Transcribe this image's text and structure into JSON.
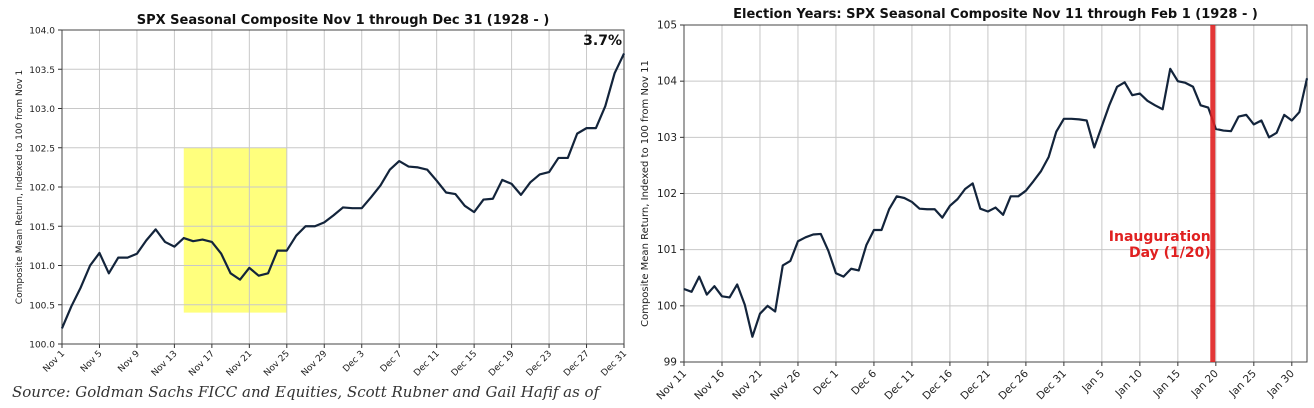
{
  "chart_data": [
    {
      "type": "line",
      "title": "SPX Seasonal Composite Nov 1 through Dec 31 (1928 - )",
      "xlabel": "",
      "ylabel": "Composite Mean Return, Indexed to 100 from Nov 1",
      "ylim": [
        100.0,
        104.0
      ],
      "yticks": [
        "100.0",
        "100.5",
        "101.0",
        "101.5",
        "102.0",
        "102.5",
        "103.0",
        "103.5",
        "104.0"
      ],
      "xtick_labels": [
        "Nov 1",
        "Nov 5",
        "Nov 9",
        "Nov 13",
        "Nov 17",
        "Nov 21",
        "Nov 25",
        "Nov 29",
        "Dec 3",
        "Dec 7",
        "Dec 11",
        "Dec 15",
        "Dec 19",
        "Dec 23",
        "Dec 27",
        "Dec 31"
      ],
      "x_days_range": [
        0,
        60
      ],
      "grid": true,
      "annotation": "3.7%",
      "highlight": {
        "x_days": [
          13,
          24
        ],
        "y": [
          100.4,
          102.5
        ],
        "color": "#ffff66"
      },
      "x_days": [
        0,
        1,
        2,
        3,
        4,
        5,
        6,
        7,
        8,
        9,
        10,
        11,
        12,
        13,
        14,
        15,
        16,
        17,
        18,
        19,
        20,
        21,
        22,
        23,
        24,
        25,
        26,
        27,
        28,
        29,
        30,
        31,
        32,
        33,
        34,
        35,
        36,
        37,
        38,
        39,
        40,
        41,
        42,
        43,
        44,
        45,
        46,
        47,
        48,
        49,
        50,
        51,
        52,
        53,
        54,
        55,
        56,
        57,
        58,
        59,
        60
      ],
      "values": [
        100.2,
        100.48,
        100.72,
        101.0,
        101.16,
        100.9,
        101.1,
        101.1,
        101.15,
        101.32,
        101.46,
        101.3,
        101.24,
        101.35,
        101.31,
        101.33,
        101.3,
        101.15,
        100.9,
        100.82,
        100.97,
        100.87,
        100.9,
        101.19,
        101.19,
        101.38,
        101.5,
        101.5,
        101.55,
        101.64,
        101.74,
        101.73,
        101.73,
        101.87,
        102.02,
        102.22,
        102.33,
        102.26,
        102.25,
        102.22,
        102.08,
        101.93,
        101.91,
        101.76,
        101.68,
        101.84,
        101.85,
        102.09,
        102.04,
        101.9,
        102.06,
        102.16,
        102.19,
        102.37,
        102.37,
        102.68,
        102.75,
        102.75,
        103.03,
        103.45,
        103.7
      ],
      "color": "#13243b"
    },
    {
      "type": "line",
      "title": "Election Years: SPX Seasonal Composite Nov 11 through Feb 1 (1928 - )",
      "xlabel": "",
      "ylabel": "Composite Mean Return, Indexed to 100 from Nov 11",
      "ylim": [
        99,
        105
      ],
      "yticks": [
        "99",
        "100",
        "101",
        "102",
        "103",
        "104",
        "105"
      ],
      "xtick_labels": [
        "Nov 11",
        "Nov 16",
        "Nov 21",
        "Nov 26",
        "Dec 1",
        "Dec 6",
        "Dec 11",
        "Dec 16",
        "Dec 21",
        "Dec 26",
        "Dec 31",
        "Jan 5",
        "Jan 10",
        "Jan 15",
        "Jan 20",
        "Jan 25",
        "Jan 30"
      ],
      "xtick_days": [
        0,
        5,
        10,
        15,
        20,
        25,
        30,
        35,
        40,
        45,
        50,
        55,
        60,
        65,
        70,
        75,
        80
      ],
      "x_days_range": [
        0,
        82
      ],
      "grid": true,
      "vline": {
        "x_day": 69.6,
        "label_line1": "Inauguration",
        "label_line2": "Day (1/20)",
        "color": "#e02020"
      },
      "x_days": [
        0,
        1,
        2,
        3,
        4,
        5,
        6,
        7,
        8,
        9,
        10,
        11,
        12,
        13,
        14,
        15,
        16,
        17,
        18,
        19,
        20,
        21,
        22,
        23,
        24,
        25,
        26,
        27,
        28,
        29,
        30,
        31,
        32,
        33,
        34,
        35,
        36,
        37,
        38,
        39,
        40,
        41,
        42,
        43,
        44,
        45,
        46,
        47,
        48,
        49,
        50,
        51,
        52,
        53,
        54,
        55,
        56,
        57,
        58,
        59,
        60,
        61,
        62,
        63,
        64,
        65,
        66,
        67,
        68,
        69,
        70,
        71,
        72,
        73,
        74,
        75,
        76,
        77,
        78,
        79,
        80,
        81,
        82
      ],
      "values": [
        100.3,
        100.25,
        100.52,
        100.2,
        100.35,
        100.17,
        100.15,
        100.38,
        100.02,
        99.45,
        99.86,
        100.0,
        99.9,
        100.72,
        100.8,
        101.15,
        101.22,
        101.27,
        101.28,
        100.98,
        100.58,
        100.52,
        100.66,
        100.63,
        101.08,
        101.35,
        101.35,
        101.72,
        101.95,
        101.92,
        101.85,
        101.73,
        101.72,
        101.72,
        101.57,
        101.78,
        101.9,
        102.08,
        102.18,
        101.73,
        101.68,
        101.75,
        101.62,
        101.95,
        101.95,
        102.05,
        102.22,
        102.4,
        102.65,
        103.1,
        103.33,
        103.33,
        103.32,
        103.3,
        102.82,
        103.2,
        103.58,
        103.9,
        103.98,
        103.75,
        103.78,
        103.65,
        103.57,
        103.5,
        104.22,
        104.0,
        103.97,
        103.9,
        103.57,
        103.53,
        103.15,
        103.12,
        103.11,
        103.37,
        103.4,
        103.23,
        103.3,
        103.0,
        103.08,
        103.4,
        103.3,
        103.45,
        104.05
      ],
      "color": "#13243b"
    }
  ],
  "footer": {
    "source": "Source: Goldman Sachs FICC and Equities, Scott Rubner and Gail Hafif as of"
  }
}
